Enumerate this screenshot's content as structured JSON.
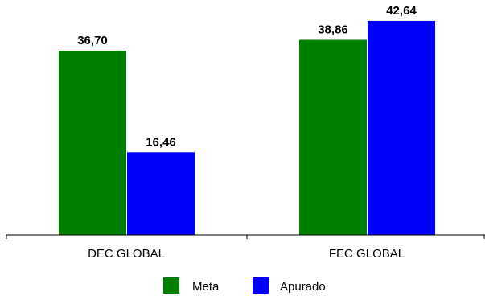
{
  "chart_data": {
    "type": "bar",
    "categories": [
      "DEC GLOBAL",
      "FEC GLOBAL"
    ],
    "series": [
      {
        "name": "Meta",
        "values": [
          36.7,
          38.86
        ],
        "value_labels": [
          "36,70",
          "38,86"
        ],
        "color": "#008000"
      },
      {
        "name": "Apurado",
        "values": [
          16.46,
          42.64
        ],
        "value_labels": [
          "16,46",
          "42,64"
        ],
        "color": "#0000ff"
      }
    ],
    "legend_position": "bottom",
    "grid": false,
    "ylim": [
      0,
      45
    ]
  }
}
